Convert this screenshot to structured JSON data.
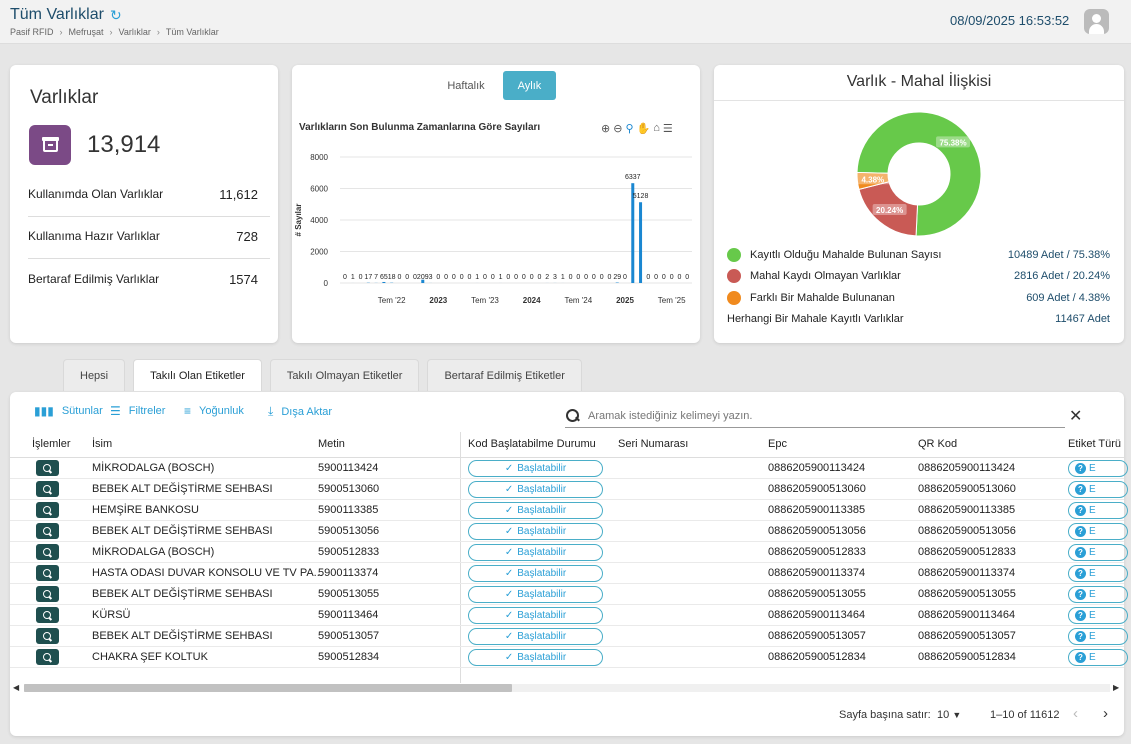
{
  "header": {
    "title": "Tüm Varlıklar",
    "breadcrumb": [
      "Pasif RFID",
      "Mefruşat",
      "Varlıklar",
      "Tüm Varlıklar"
    ],
    "datetime": "08/09/2025 16:53:52"
  },
  "summary": {
    "title": "Varlıklar",
    "total": "13,914",
    "icon_color": "#7b4a86",
    "rows": [
      {
        "label": "Kullanımda Olan Varlıklar",
        "value": "11,612"
      },
      {
        "label": "Kullanıma Hazır Varlıklar",
        "value": "728"
      },
      {
        "label": "Bertaraf Edilmiş Varlıklar",
        "value": "1574"
      }
    ]
  },
  "chart_panel": {
    "tab_weekly": "Haftalık",
    "tab_monthly": "Aylık",
    "chart_title": "Varlıkların Son Bulunma Zamanlarına Göre Sayıları"
  },
  "chart_data": {
    "type": "bar",
    "ylabel": "# Sayılar",
    "ylim": [
      0,
      8000
    ],
    "yticks": [
      "8000",
      "6000",
      "4000",
      "2000",
      "0"
    ],
    "xticks": [
      {
        "label": "Tem '22",
        "bold": false
      },
      {
        "label": "2023",
        "bold": true
      },
      {
        "label": "Tem '23",
        "bold": false
      },
      {
        "label": "2024",
        "bold": true
      },
      {
        "label": "Tem '24",
        "bold": false
      },
      {
        "label": "2025",
        "bold": true
      },
      {
        "label": "Tem '25",
        "bold": false
      }
    ],
    "categories": [
      "2022-01",
      "2022-02",
      "2022-03",
      "2022-04",
      "2022-05",
      "2022-06",
      "2022-07",
      "2022-08",
      "2022-09",
      "2022-10",
      "2022-11",
      "2022-12",
      "2023-01",
      "2023-02",
      "2023-03",
      "2023-04",
      "2023-05",
      "2023-06",
      "2023-07",
      "2023-08",
      "2023-09",
      "2023-10",
      "2023-11",
      "2023-12",
      "2024-01",
      "2024-02",
      "2024-03",
      "2024-04",
      "2024-05",
      "2024-06",
      "2024-07",
      "2024-08",
      "2024-09",
      "2024-10",
      "2024-11",
      "2024-12",
      "2025-01",
      "2025-02",
      "2025-03",
      "2025-04",
      "2025-05",
      "2025-06",
      "2025-07",
      "2025-08",
      "2025-09"
    ],
    "values": [
      0,
      1,
      0,
      17,
      7,
      65,
      18,
      0,
      0,
      0,
      209,
      3,
      0,
      0,
      0,
      0,
      0,
      1,
      0,
      0,
      1,
      0,
      0,
      0,
      0,
      0,
      2,
      3,
      1,
      0,
      0,
      0,
      0,
      0,
      0,
      29,
      0,
      6337,
      5128,
      0,
      0,
      0,
      0,
      0,
      0
    ],
    "labels": [
      "0",
      "1",
      "0",
      "17",
      "7",
      "65",
      "18",
      "0",
      "0",
      "0",
      "209",
      "3",
      "0",
      "0",
      "0",
      "0",
      "0",
      "1",
      "0",
      "0",
      "1",
      "0",
      "0",
      "0",
      "0",
      "0",
      "2",
      "3",
      "1",
      "0",
      "0",
      "0",
      "0",
      "0",
      "0",
      "29",
      "0",
      "6337",
      "5128",
      "0",
      "0",
      "0",
      "0",
      "0",
      "0"
    ],
    "color": "#1a87d1"
  },
  "pie_panel": {
    "title": "Varlık - Mahal İlişkisi",
    "slices": [
      {
        "label": "Kayıtlı Olduğu Mahalde Bulunan Sayısı",
        "count": "10489 Adet",
        "pct": "75.38%",
        "value": 75.38,
        "color": "#67c94a"
      },
      {
        "label": "Mahal Kaydı Olmayan Varlıklar",
        "count": "2816 Adet",
        "pct": "20.24%",
        "value": 20.24,
        "color": "#c95a55"
      },
      {
        "label": "Farklı Bir Mahalde Bulunanan",
        "count": "609 Adet",
        "pct": "4.38%",
        "value": 4.38,
        "color": "#f08a1e"
      }
    ],
    "footer_label": "Herhangi Bir Mahale Kayıtlı Varlıklar",
    "footer_value": "11467 Adet"
  },
  "tabs": [
    "Hepsi",
    "Takılı Olan Etiketler",
    "Takılı Olmayan Etiketler",
    "Bertaraf Edilmiş Etiketler"
  ],
  "toolbar": {
    "columns": "Sütunlar",
    "filters": "Filtreler",
    "density": "Yoğunluk",
    "export": "Dışa Aktar",
    "search_placeholder": "Aramak istediğiniz kelimeyi yazın."
  },
  "table": {
    "headers": [
      "İşlemler",
      "İsim",
      "Metin",
      "Kod Başlatabilme Durumu",
      "Seri Numarası",
      "Epc",
      "QR Kod",
      "Etiket Türü"
    ],
    "rows": [
      {
        "name": "MİKRODALGA (BOSCH)",
        "text": "5900113424",
        "status": "Başlatabilir",
        "serial": "",
        "epc": "0886205900113424",
        "qr": "0886205900113424",
        "type": "E"
      },
      {
        "name": "BEBEK ALT DEĞİŞTİRME SEHBASI",
        "text": "5900513060",
        "status": "Başlatabilir",
        "serial": "",
        "epc": "0886205900513060",
        "qr": "0886205900513060",
        "type": "E"
      },
      {
        "name": "HEMŞİRE BANKOSU",
        "text": "5900113385",
        "status": "Başlatabilir",
        "serial": "",
        "epc": "0886205900113385",
        "qr": "0886205900113385",
        "type": "E"
      },
      {
        "name": "BEBEK ALT DEĞİŞTİRME SEHBASI",
        "text": "5900513056",
        "status": "Başlatabilir",
        "serial": "",
        "epc": "0886205900513056",
        "qr": "0886205900513056",
        "type": "E"
      },
      {
        "name": "MİKRODALGA (BOSCH)",
        "text": "5900512833",
        "status": "Başlatabilir",
        "serial": "",
        "epc": "0886205900512833",
        "qr": "0886205900512833",
        "type": "E"
      },
      {
        "name": "HASTA ODASI DUVAR KONSOLU VE TV PA...",
        "text": "5900113374",
        "status": "Başlatabilir",
        "serial": "",
        "epc": "0886205900113374",
        "qr": "0886205900113374",
        "type": "E"
      },
      {
        "name": "BEBEK ALT DEĞİŞTİRME SEHBASI",
        "text": "5900513055",
        "status": "Başlatabilir",
        "serial": "",
        "epc": "0886205900513055",
        "qr": "0886205900513055",
        "type": "E"
      },
      {
        "name": "KÜRSÜ",
        "text": "5900113464",
        "status": "Başlatabilir",
        "serial": "",
        "epc": "0886205900113464",
        "qr": "0886205900113464",
        "type": "E"
      },
      {
        "name": "BEBEK ALT DEĞİŞTİRME SEHBASI",
        "text": "5900513057",
        "status": "Başlatabilir",
        "serial": "",
        "epc": "0886205900513057",
        "qr": "0886205900513057",
        "type": "E"
      },
      {
        "name": "CHAKRA ŞEF KOLTUK",
        "text": "5900512834",
        "status": "Başlatabilir",
        "serial": "",
        "epc": "0886205900512834",
        "qr": "0886205900512834",
        "type": "E"
      }
    ]
  },
  "pagination": {
    "rows_per_page_label": "Sayfa başına satır:",
    "rows_per_page": "10",
    "range": "1–10 of 11612"
  }
}
